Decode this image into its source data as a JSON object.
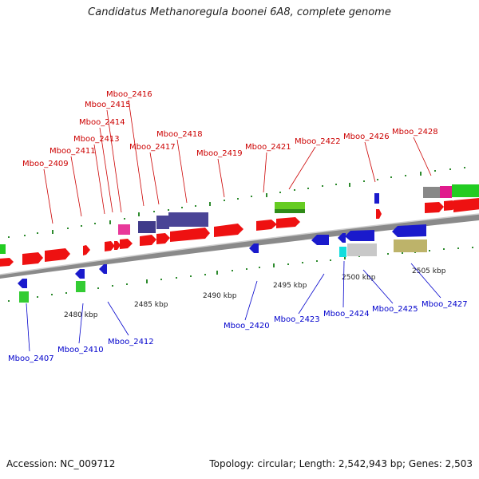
{
  "title": "Candidatus Methanoregula boonei 6A8, complete genome",
  "accession_label": "Accession: NC_009712",
  "topology_label": "Topology: circular; Length: 2,542,943 bp; Genes: 2,503",
  "colors": {
    "forward_label": "#cc0000",
    "reverse_label": "#0000cc",
    "backbone": "#888888",
    "ticks": "#2e8b2e"
  },
  "scale_labels": [
    {
      "text": "2480 kbp",
      "kbp": 2480
    },
    {
      "text": "2485 kbp",
      "kbp": 2485
    },
    {
      "text": "2490 kbp",
      "kbp": 2490
    },
    {
      "text": "2495 kbp",
      "kbp": 2495
    },
    {
      "text": "2500 kbp",
      "kbp": 2500
    },
    {
      "text": "2505 kbp",
      "kbp": 2505
    }
  ],
  "forward_labels": [
    "Mboo_2409",
    "Mboo_2411",
    "Mboo_2413",
    "Mboo_2414",
    "Mboo_2415",
    "Mboo_2416",
    "Mboo_2417",
    "Mboo_2418",
    "Mboo_2419",
    "Mboo_2421",
    "Mboo_2422",
    "Mboo_2426",
    "Mboo_2428"
  ],
  "reverse_labels": [
    "Mboo_2407",
    "Mboo_2410",
    "Mboo_2412",
    "Mboo_2420",
    "Mboo_2423",
    "Mboo_2424",
    "Mboo_2425",
    "Mboo_2427"
  ]
}
